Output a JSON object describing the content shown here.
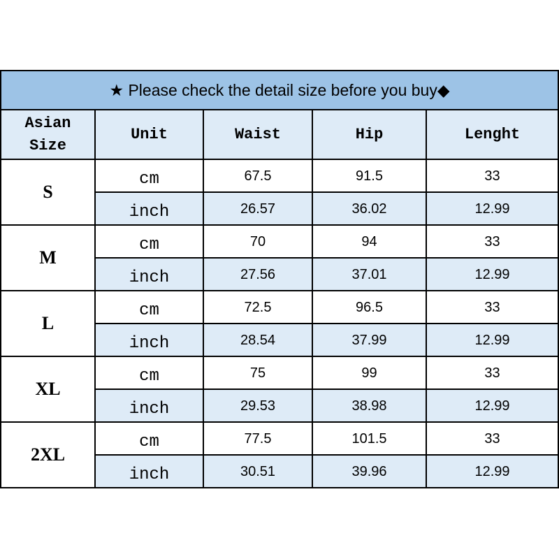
{
  "title": "★ Please check the detail size before you buy◆",
  "header": [
    "Asian Size",
    "Unit",
    "Waist",
    "Hip",
    "Lenght"
  ],
  "rows": [
    {
      "size": "S",
      "lines": [
        [
          "cm",
          "67.5",
          "91.5",
          "33"
        ],
        [
          "inch",
          "26.57",
          "36.02",
          "12.99"
        ]
      ]
    },
    {
      "size": "M",
      "lines": [
        [
          "cm",
          "70",
          "94",
          "33"
        ],
        [
          "inch",
          "27.56",
          "37.01",
          "12.99"
        ]
      ]
    },
    {
      "size": "L",
      "lines": [
        [
          "cm",
          "72.5",
          "96.5",
          "33"
        ],
        [
          "inch",
          "28.54",
          "37.99",
          "12.99"
        ]
      ]
    },
    {
      "size": "XL",
      "lines": [
        [
          "cm",
          "75",
          "99",
          "33"
        ],
        [
          "inch",
          "29.53",
          "38.98",
          "12.99"
        ]
      ]
    },
    {
      "size": "2XL",
      "lines": [
        [
          "cm",
          "77.5",
          "101.5",
          "33"
        ],
        [
          "inch",
          "30.51",
          "39.96",
          "12.99"
        ]
      ]
    }
  ]
}
